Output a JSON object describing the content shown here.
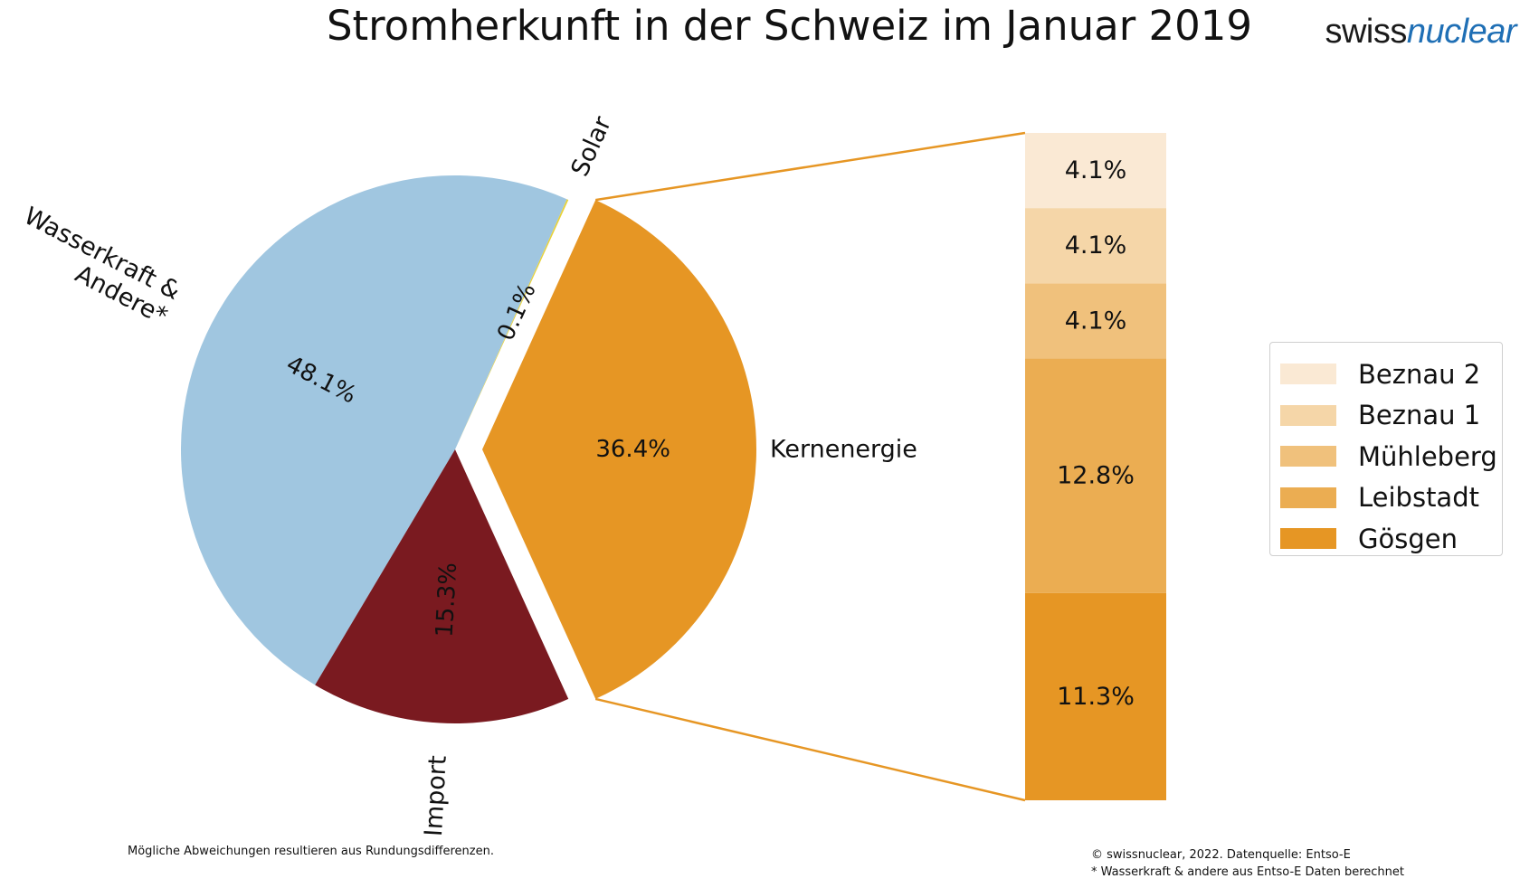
{
  "title": "Stromherkunft in der Schweiz im Januar 2019",
  "logo": {
    "part1": "swiss",
    "part2": "nuclear"
  },
  "chart_data": {
    "type": "pie",
    "pie": {
      "slices": [
        {
          "label": "Kernenergie",
          "value": 36.4,
          "pct_label": "36.4%",
          "color": "#e69624",
          "exploded": true
        },
        {
          "label": "Solar",
          "value": 0.1,
          "pct_label": "0.1%",
          "color": "#e8d23a",
          "exploded": false
        },
        {
          "label": "Wasserkraft & Andere*",
          "value": 48.1,
          "pct_label": "48.1%",
          "color": "#a0c6e0",
          "exploded": false
        },
        {
          "label": "Import",
          "value": 15.3,
          "pct_label": "15.3%",
          "color": "#7a1a20",
          "exploded": false
        }
      ]
    },
    "bar": {
      "type": "stacked_bar",
      "segments": [
        {
          "label": "Gösgen",
          "value": 11.3,
          "pct_label": "11.3%",
          "color": "#e69624"
        },
        {
          "label": "Leibstadt",
          "value": 12.8,
          "pct_label": "12.8%",
          "color": "#ebad52"
        },
        {
          "label": "Mühleberg",
          "value": 4.1,
          "pct_label": "4.1%",
          "color": "#f0c17c"
        },
        {
          "label": "Beznau 1",
          "value": 4.1,
          "pct_label": "4.1%",
          "color": "#f5d6a8"
        },
        {
          "label": "Beznau 2",
          "value": 4.1,
          "pct_label": "4.1%",
          "color": "#fae9d4"
        }
      ]
    },
    "legend": {
      "position": "right",
      "entries": [
        "Beznau 2",
        "Beznau 1",
        "Mühleberg",
        "Leibstadt",
        "Gösgen"
      ]
    }
  },
  "notes": {
    "left": "Mögliche Abweichungen resultieren aus Rundungsdifferenzen.",
    "right_1": "© swissnuclear, 2022. Datenquelle: Entso-E",
    "right_2": "* Wasserkraft & andere aus Entso-E Daten berechnet"
  }
}
